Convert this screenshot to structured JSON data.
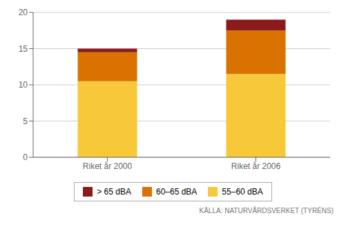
{
  "chart_data": {
    "type": "bar",
    "stacked": true,
    "categories": [
      "Riket år 2000",
      "Riket år 2006"
    ],
    "series": [
      {
        "name": "55–60 dBA",
        "color": "#F6C83A",
        "values": [
          10.5,
          11.5
        ]
      },
      {
        "name": "60–65 dBA",
        "color": "#D97200",
        "values": [
          4.0,
          6.0
        ]
      },
      {
        "name": "> 65 dBA",
        "color": "#8B1A1A",
        "values": [
          0.5,
          1.5
        ]
      }
    ],
    "ylim": [
      0,
      20
    ],
    "yticks": [
      0,
      5,
      10,
      15,
      20
    ],
    "grid": true,
    "legend": "bottom",
    "annotations": [
      "KÄLLA: NATURVÅRDSVERKET (TYRÉNS)"
    ]
  }
}
